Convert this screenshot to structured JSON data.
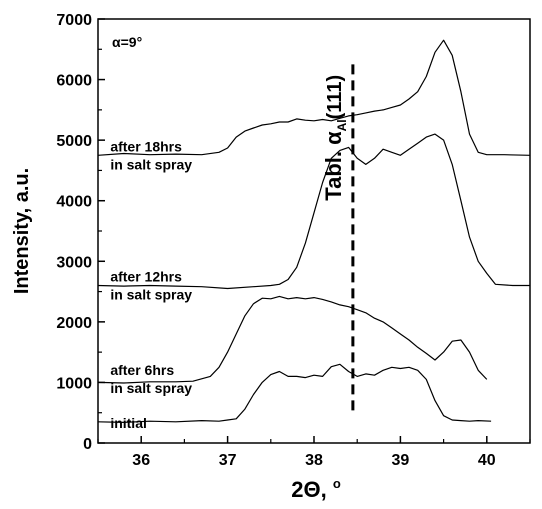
{
  "chart_data": {
    "type": "line",
    "xlabel_main": "2Θ, ",
    "xlabel_unit": "o",
    "ylabel": "Intensity, a.u.",
    "xlim": [
      35.5,
      40.5
    ],
    "ylim": [
      0,
      7000
    ],
    "x_ticks": [
      36,
      37,
      38,
      39,
      40
    ],
    "y_ticks": [
      0,
      1000,
      2000,
      3000,
      4000,
      5000,
      6000,
      7000
    ],
    "grid": false,
    "legend": null,
    "inset_label": "α=9°",
    "reference_line": {
      "x": 38.45,
      "style": "dashed",
      "label_main": "Tabl. α",
      "label_sub": "Al",
      "label_suffix": "(111)"
    },
    "series": [
      {
        "label_lines": [
          "initial"
        ],
        "label_anchor": [
          35.55,
          180
        ],
        "x": [
          35.5,
          35.8,
          36.1,
          36.4,
          36.7,
          36.9,
          37.0,
          37.1,
          37.2,
          37.3,
          37.4,
          37.5,
          37.6,
          37.7,
          37.8,
          37.9,
          38.0,
          38.1,
          38.2,
          38.3,
          38.4,
          38.5,
          38.6,
          38.7,
          38.8,
          38.9,
          39.0,
          39.1,
          39.2,
          39.3,
          39.4,
          39.5,
          39.6,
          39.7,
          39.8,
          39.9,
          40.05
        ],
        "values": [
          350,
          340,
          360,
          350,
          370,
          360,
          380,
          400,
          560,
          800,
          1000,
          1130,
          1180,
          1100,
          1100,
          1080,
          1120,
          1100,
          1260,
          1300,
          1180,
          1100,
          1140,
          1120,
          1200,
          1250,
          1230,
          1250,
          1200,
          1050,
          700,
          450,
          380,
          370,
          360,
          370,
          360
        ]
      },
      {
        "label_lines": [
          "after 6hrs",
          "in salt spray"
        ],
        "label_anchor": [
          35.55,
          1060
        ],
        "x": [
          35.5,
          35.8,
          36.1,
          36.4,
          36.6,
          36.8,
          36.9,
          37.0,
          37.1,
          37.2,
          37.3,
          37.4,
          37.5,
          37.6,
          37.7,
          37.8,
          37.9,
          38.0,
          38.1,
          38.2,
          38.3,
          38.4,
          38.5,
          38.6,
          38.7,
          38.8,
          38.9,
          39.0,
          39.1,
          39.2,
          39.3,
          39.4,
          39.5,
          39.6,
          39.7,
          39.8,
          39.9,
          40.0
        ],
        "values": [
          1000,
          990,
          1010,
          1010,
          1020,
          1100,
          1250,
          1500,
          1800,
          2100,
          2300,
          2390,
          2380,
          2420,
          2380,
          2400,
          2380,
          2400,
          2370,
          2330,
          2280,
          2250,
          2200,
          2150,
          2060,
          2000,
          1900,
          1800,
          1700,
          1580,
          1480,
          1370,
          1500,
          1680,
          1700,
          1500,
          1200,
          1050
        ]
      },
      {
        "label_lines": [
          "after 12hrs",
          "in salt spray"
        ],
        "label_anchor": [
          35.55,
          2600
        ],
        "x": [
          35.5,
          35.8,
          36.1,
          36.4,
          36.7,
          37.0,
          37.3,
          37.5,
          37.6,
          37.7,
          37.8,
          37.9,
          38.0,
          38.1,
          38.2,
          38.3,
          38.4,
          38.5,
          38.6,
          38.7,
          38.8,
          38.9,
          39.0,
          39.1,
          39.2,
          39.3,
          39.4,
          39.5,
          39.6,
          39.7,
          39.8,
          39.9,
          40.0,
          40.1,
          40.3,
          40.5
        ],
        "values": [
          2600,
          2590,
          2600,
          2590,
          2580,
          2550,
          2580,
          2600,
          2620,
          2700,
          2900,
          3300,
          3800,
          4300,
          4700,
          4830,
          4880,
          4700,
          4600,
          4700,
          4850,
          4800,
          4750,
          4850,
          4950,
          5050,
          5100,
          5000,
          4600,
          4000,
          3400,
          3000,
          2800,
          2620,
          2600,
          2600
        ]
      },
      {
        "label_lines": [
          "after 18hrs",
          "in salt spray"
        ],
        "label_anchor": [
          35.55,
          4750
        ],
        "x": [
          35.5,
          35.8,
          36.1,
          36.4,
          36.7,
          36.9,
          37.0,
          37.1,
          37.2,
          37.3,
          37.4,
          37.5,
          37.6,
          37.7,
          37.8,
          37.9,
          38.0,
          38.1,
          38.2,
          38.3,
          38.4,
          38.5,
          38.6,
          38.7,
          38.8,
          38.9,
          39.0,
          39.1,
          39.2,
          39.3,
          39.4,
          39.5,
          39.6,
          39.7,
          39.8,
          39.9,
          40.0,
          40.2,
          40.5
        ],
        "values": [
          4750,
          4780,
          4760,
          4770,
          4760,
          4800,
          4870,
          5050,
          5150,
          5200,
          5250,
          5270,
          5300,
          5300,
          5350,
          5330,
          5320,
          5340,
          5320,
          5360,
          5400,
          5420,
          5450,
          5480,
          5500,
          5540,
          5580,
          5680,
          5800,
          6050,
          6450,
          6650,
          6400,
          5800,
          5100,
          4800,
          4760,
          4760,
          4750
        ]
      }
    ]
  }
}
